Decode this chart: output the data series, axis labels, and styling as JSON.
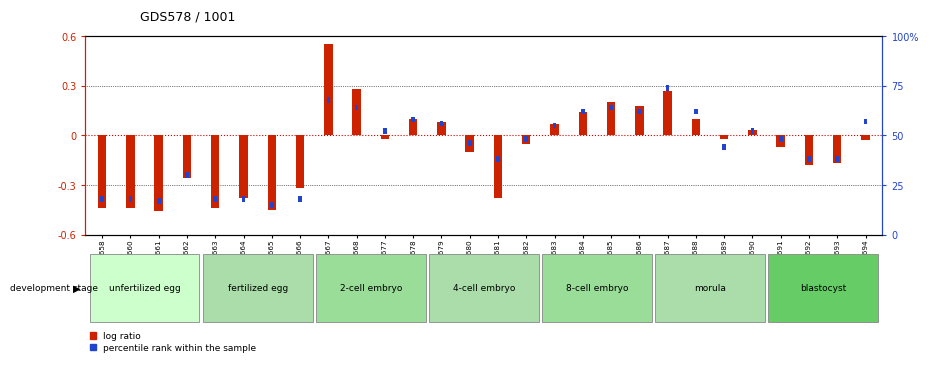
{
  "title": "GDS578 / 1001",
  "samples": [
    "GSM14658",
    "GSM14660",
    "GSM14661",
    "GSM14662",
    "GSM14663",
    "GSM14664",
    "GSM14665",
    "GSM14666",
    "GSM14667",
    "GSM14668",
    "GSM14677",
    "GSM14678",
    "GSM14679",
    "GSM14680",
    "GSM14681",
    "GSM14682",
    "GSM14683",
    "GSM14684",
    "GSM14685",
    "GSM14686",
    "GSM14687",
    "GSM14688",
    "GSM14689",
    "GSM14690",
    "GSM14691",
    "GSM14692",
    "GSM14693",
    "GSM14694"
  ],
  "log_ratio": [
    -0.44,
    -0.44,
    -0.46,
    -0.26,
    -0.44,
    -0.38,
    -0.45,
    -0.32,
    0.55,
    0.28,
    -0.02,
    0.1,
    0.08,
    -0.1,
    -0.38,
    -0.05,
    0.07,
    0.14,
    0.2,
    0.18,
    0.27,
    0.1,
    -0.02,
    0.03,
    -0.07,
    -0.18,
    -0.17,
    -0.03
  ],
  "percentile": [
    18,
    18,
    17,
    30,
    18,
    18,
    15,
    18,
    68,
    64,
    52,
    58,
    56,
    46,
    38,
    48,
    55,
    62,
    64,
    62,
    74,
    62,
    44,
    52,
    48,
    38,
    38,
    57
  ],
  "stages": [
    {
      "label": "unfertilized egg",
      "start": 0,
      "end": 3
    },
    {
      "label": "fertilized egg",
      "start": 4,
      "end": 7
    },
    {
      "label": "2-cell embryo",
      "start": 8,
      "end": 11
    },
    {
      "label": "4-cell embryo",
      "start": 12,
      "end": 15
    },
    {
      "label": "8-cell embryo",
      "start": 16,
      "end": 19
    },
    {
      "label": "morula",
      "start": 20,
      "end": 23
    },
    {
      "label": "blastocyst",
      "start": 24,
      "end": 27
    }
  ],
  "stage_colors": [
    "#ccffcc",
    "#aaddaa",
    "#99dd99",
    "#aaddaa",
    "#99dd99",
    "#aaddaa",
    "#66cc66"
  ],
  "ylim": [
    -0.6,
    0.6
  ],
  "yticks_left": [
    -0.6,
    -0.3,
    0.0,
    0.3,
    0.6
  ],
  "yticks_right": [
    0,
    25,
    50,
    75,
    100
  ],
  "bar_color_red": "#cc2200",
  "bar_color_blue": "#2244cc",
  "bg_color": "#ffffff",
  "zero_line_color": "#cc0000"
}
